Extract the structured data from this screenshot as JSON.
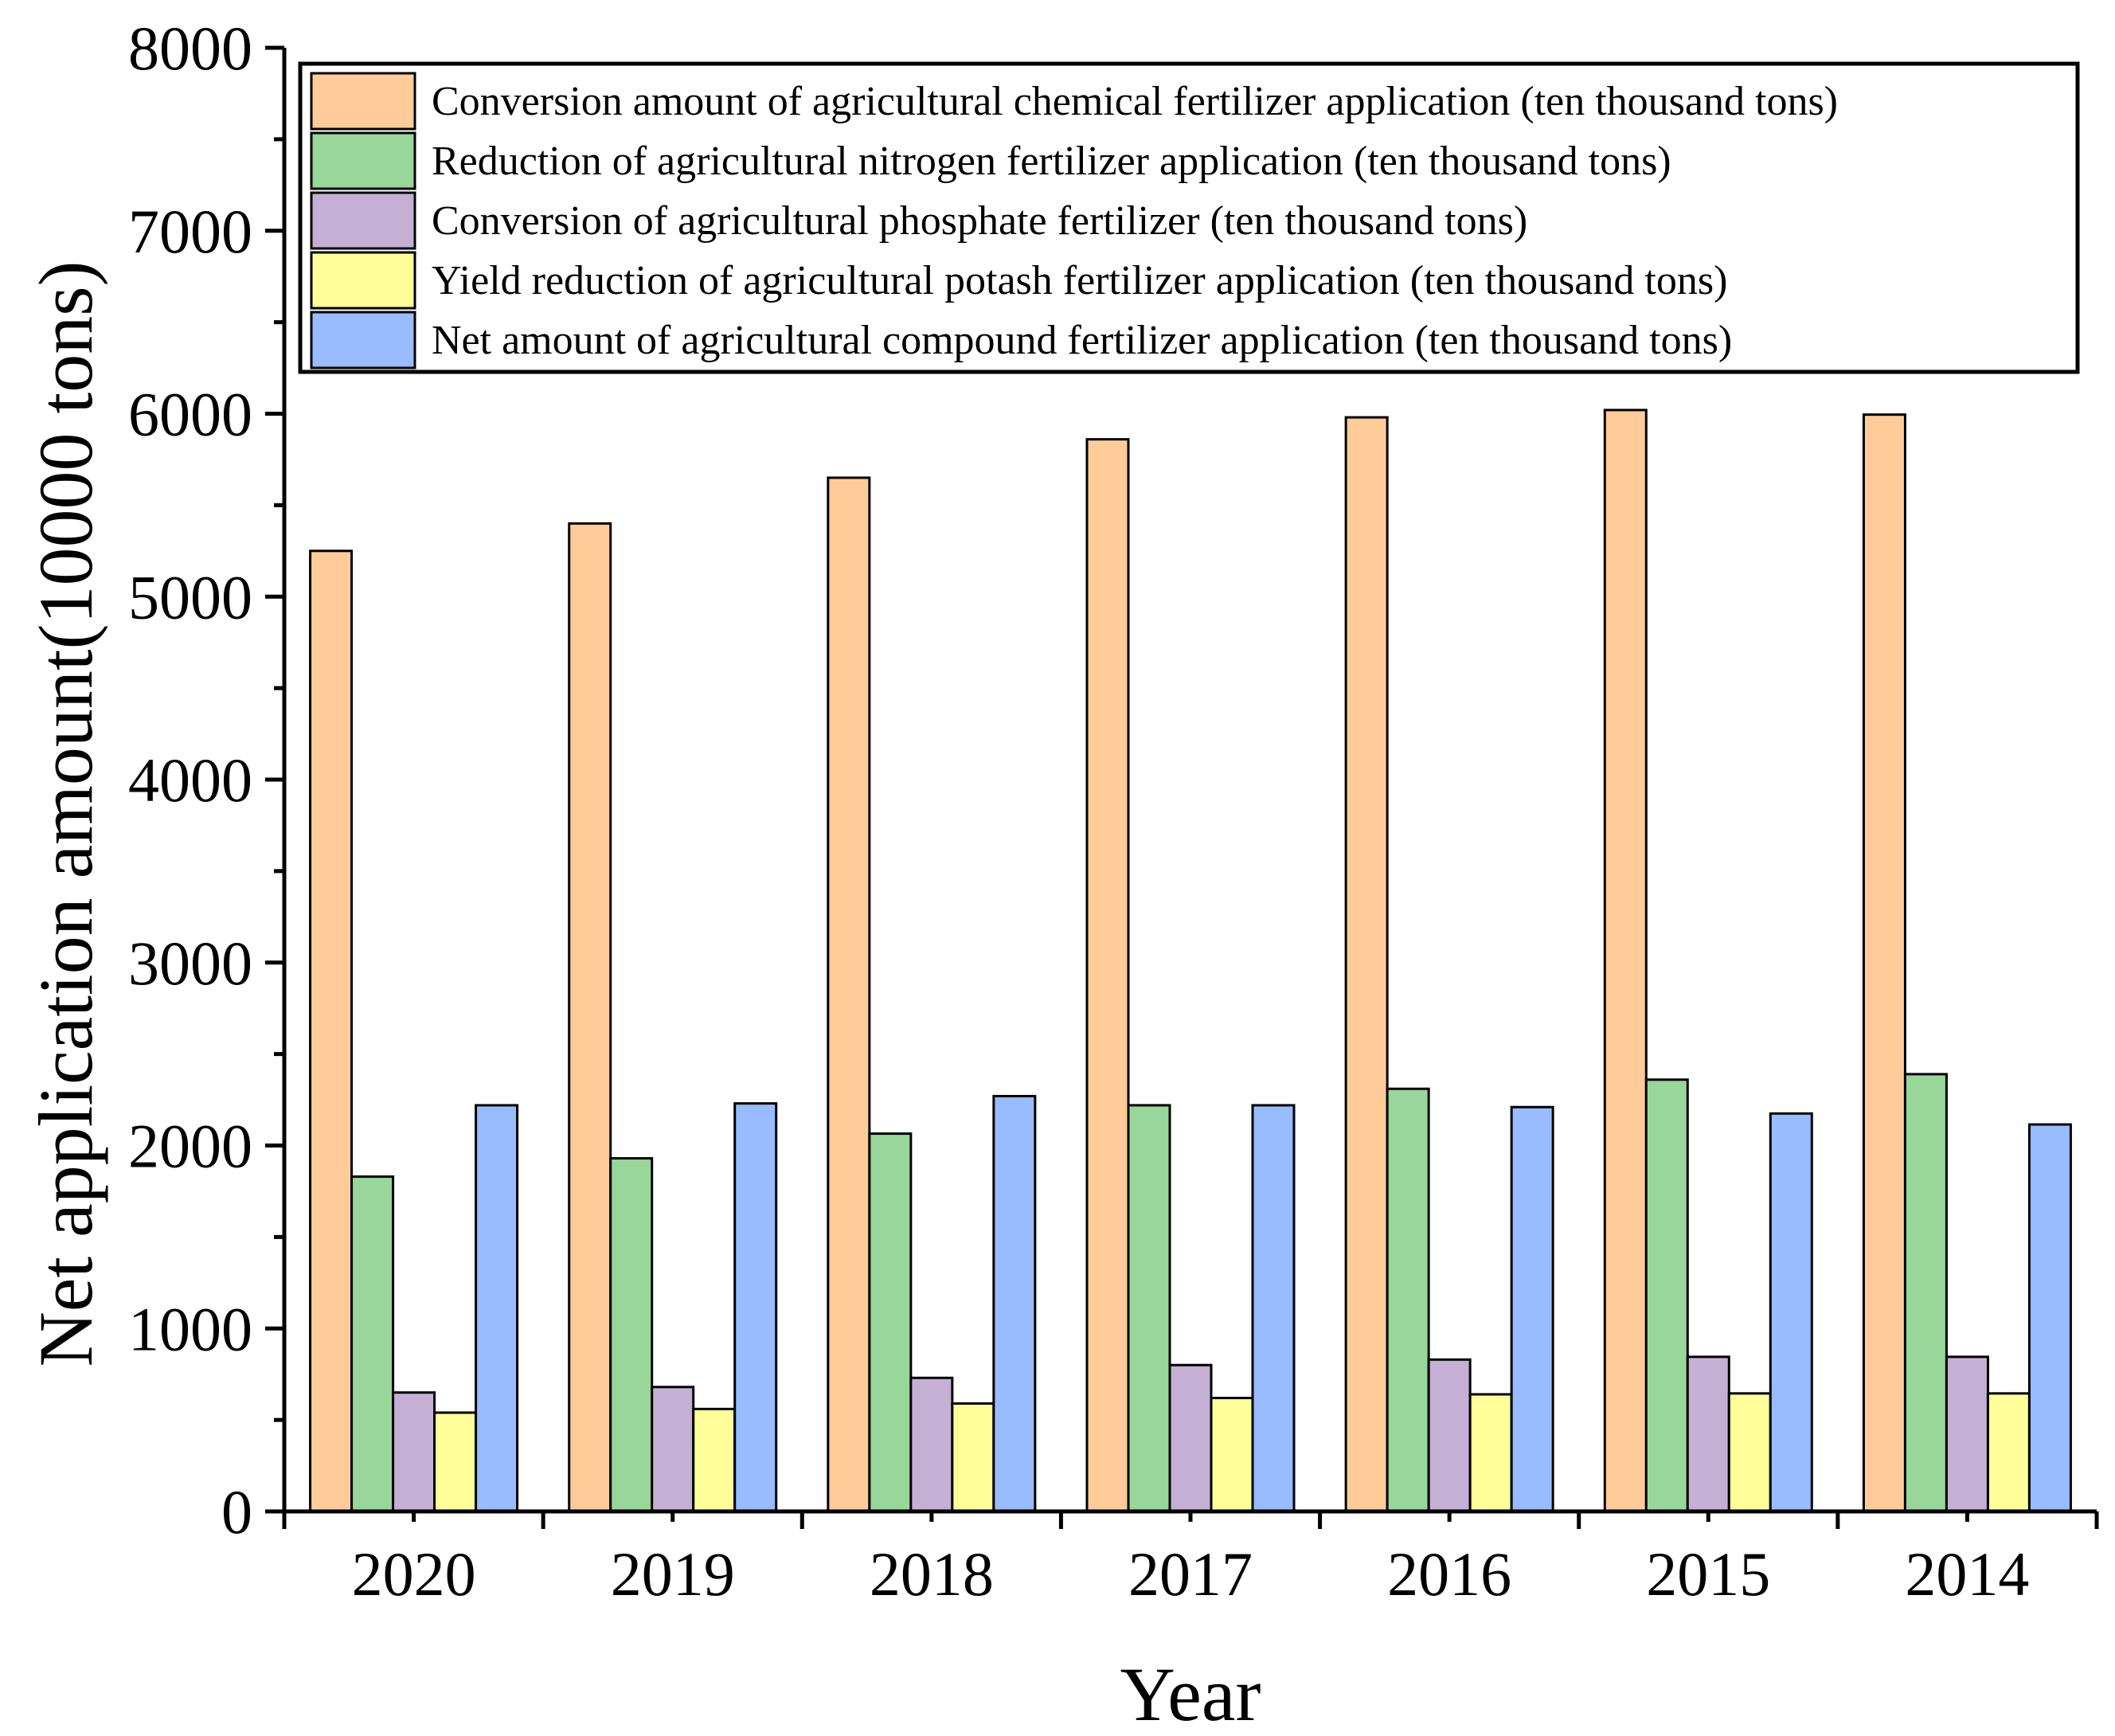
{
  "chart_data": {
    "type": "bar",
    "title": "",
    "xlabel": "Year",
    "ylabel": "Net application amount(10000 tons)",
    "ylim": [
      0,
      8000
    ],
    "yticks": [
      0,
      1000,
      2000,
      3000,
      4000,
      5000,
      6000,
      7000,
      8000
    ],
    "grid": false,
    "legend_position": "top-right",
    "categories": [
      "2020",
      "2019",
      "2018",
      "2017",
      "2016",
      "2015",
      "2014"
    ],
    "series": [
      {
        "name": "Conversion amount of agricultural chemical fertilizer application (ten thousand tons)",
        "color": "#ffcc99",
        "values": [
          5250,
          5400,
          5650,
          5860,
          5980,
          6020,
          5995
        ]
      },
      {
        "name": "Reduction of agricultural nitrogen fertilizer application (ten thousand tons)",
        "color": "#99d699",
        "values": [
          1830,
          1930,
          2065,
          2220,
          2310,
          2360,
          2390
        ]
      },
      {
        "name": "Conversion of agricultural phosphate fertilizer (ten thousand tons)",
        "color": "#c5b0d5",
        "values": [
          650,
          680,
          730,
          800,
          830,
          845,
          845
        ]
      },
      {
        "name": "Yield reduction of agricultural potash fertilizer application (ten thousand tons)",
        "color": "#ffff99",
        "values": [
          540,
          560,
          590,
          620,
          640,
          645,
          645
        ]
      },
      {
        "name": "Net amount of agricultural compound fertilizer application (ten thousand tons)",
        "color": "#99bbff",
        "values": [
          2220,
          2230,
          2270,
          2220,
          2210,
          2175,
          2115
        ]
      }
    ]
  }
}
